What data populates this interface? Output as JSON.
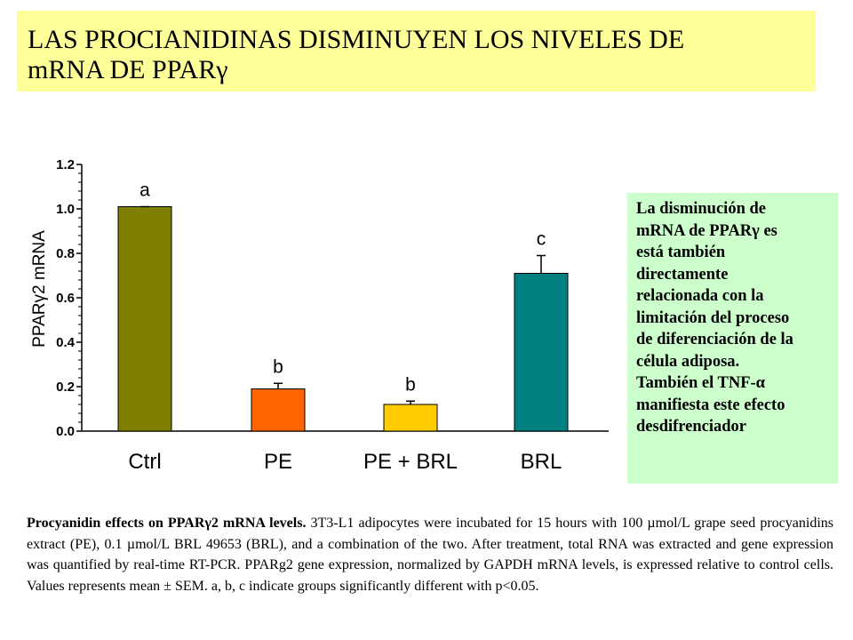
{
  "slide": {
    "title_line1": "LAS PROCIANIDINAS DISMINUYEN LOS NIVELES DE",
    "title_line2": "mRNA DE PPARγ"
  },
  "side_note": {
    "lines": [
      "La disminución de",
      "mRNA de PPARγ es",
      "está también",
      "directamente",
      "relacionada con la",
      "limitación del proceso",
      "de diferenciación de la",
      "célula adiposa.",
      "También el TNF-α",
      "manifiesta este efecto",
      "desdifrenciador"
    ]
  },
  "caption": {
    "bold": "Procyanidin effects on PPARγ2 mRNA levels.",
    "text": " 3T3-L1 adipocytes were incubated for 15 hours with 100 µmol/L grape seed procyanidins extract (PE), 0.1 µmol/L BRL 49653 (BRL), and a combination of the two. After treatment, total RNA was extracted and gene expression was quantified by real-time RT-PCR. PPARg2 gene expression, normalized by GAPDH mRNA levels, is expressed relative to control cells. Values represents mean ± SEM.  a, b, c indicate groups significantly different with p<0.05."
  },
  "chart_data": {
    "type": "bar",
    "categories": [
      "Ctrl",
      "PE",
      "PE + BRL",
      "BRL"
    ],
    "values": [
      1.01,
      0.19,
      0.12,
      0.71
    ],
    "errors": [
      0.0,
      0.025,
      0.015,
      0.08
    ],
    "significance": [
      "a",
      "b",
      "b",
      "c"
    ],
    "colors": [
      "#808000",
      "#ff6600",
      "#ffcc00",
      "#008080"
    ],
    "ylabel": "PPARγ2 mRNA",
    "ylim": [
      0.0,
      1.2
    ],
    "yticks": [
      "0.0",
      "0.2",
      "0.4",
      "0.6",
      "0.8",
      "1.0",
      "1.2"
    ],
    "grid": false
  }
}
